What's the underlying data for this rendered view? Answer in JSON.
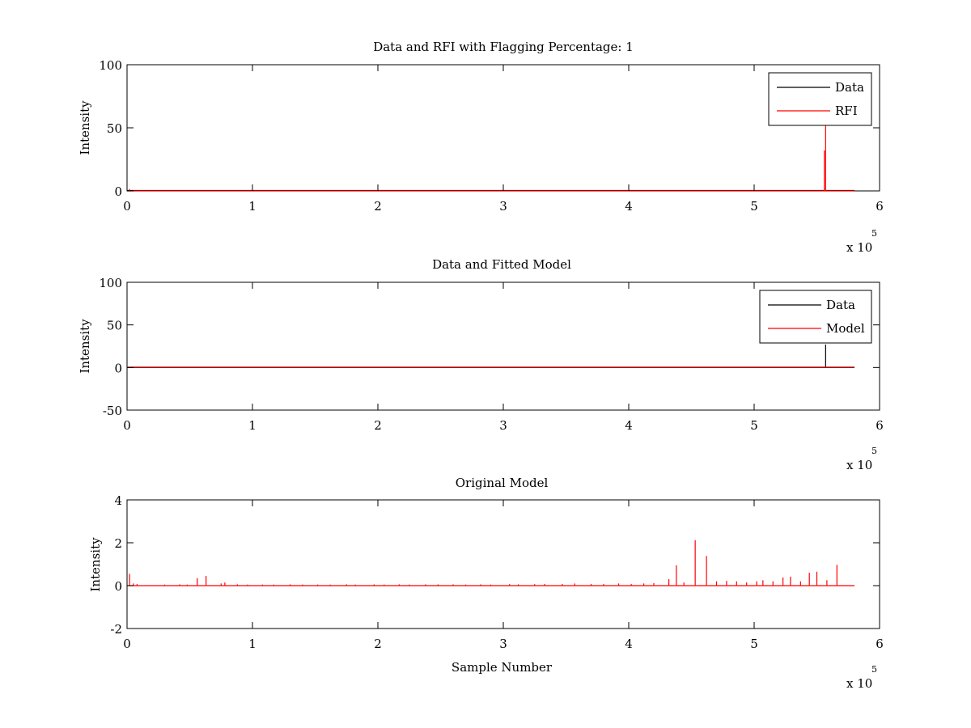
{
  "figure": {
    "background": "#ffffff"
  },
  "charts": [
    {
      "type": "line",
      "title": "Data and RFI with Flagging Percentage: 1",
      "xlabel": "",
      "ylabel": "Intensity",
      "xlim": [
        0,
        6
      ],
      "ylim": [
        0,
        100
      ],
      "xticks": [
        "0",
        "1",
        "2",
        "3",
        "4",
        "5",
        "6"
      ],
      "yticks": [
        "0",
        "50",
        "100"
      ],
      "x_multiplier": {
        "base": "x 10",
        "exp": "5"
      },
      "legend": {
        "position": "top-right",
        "entries": [
          {
            "label": "Data",
            "color": "#000000"
          },
          {
            "label": "RFI",
            "color": "#ff0000"
          }
        ]
      },
      "series": [
        {
          "name": "Data",
          "color": "#000000",
          "points": [
            [
              0,
              0.3
            ],
            [
              5.62,
              0.3
            ],
            [
              5.8,
              0.3
            ]
          ]
        },
        {
          "name": "RFI",
          "color": "#ff0000",
          "spikes": [
            [
              0.02,
              1.5
            ],
            [
              5.56,
              32
            ],
            [
              5.57,
              58
            ]
          ]
        }
      ],
      "chart_data": {
        "type": "line",
        "x_units": "x 10^5 samples",
        "series": [
          {
            "name": "Data",
            "x": [
              0,
              5.8
            ],
            "y": [
              0.3,
              0.3
            ]
          },
          {
            "name": "RFI",
            "x": [
              0.02,
              5.56,
              5.57
            ],
            "y": [
              1.5,
              32,
              58
            ]
          }
        ]
      }
    },
    {
      "type": "line",
      "title": "Data and Fitted Model",
      "xlabel": "",
      "ylabel": "Intensity",
      "xlim": [
        0,
        6
      ],
      "ylim": [
        -50,
        100
      ],
      "xticks": [
        "0",
        "1",
        "2",
        "3",
        "4",
        "5",
        "6"
      ],
      "yticks": [
        "-50",
        "0",
        "50",
        "100"
      ],
      "x_multiplier": {
        "base": "x 10",
        "exp": "5"
      },
      "legend": {
        "position": "top-right",
        "entries": [
          {
            "label": "Data",
            "color": "#000000"
          },
          {
            "label": "Model",
            "color": "#ff0000"
          }
        ]
      },
      "series": [
        {
          "name": "Data",
          "color": "#000000",
          "spikes": [
            [
              5.57,
              27
            ]
          ]
        },
        {
          "name": "Model",
          "color": "#ff0000",
          "points": [
            [
              0,
              0.5
            ],
            [
              5.8,
              0.5
            ]
          ]
        }
      ],
      "chart_data": {
        "type": "line",
        "x_units": "x 10^5 samples",
        "series": [
          {
            "name": "Data",
            "x": [
              5.57
            ],
            "y": [
              27
            ]
          },
          {
            "name": "Model",
            "x": [
              0,
              5.8
            ],
            "y": [
              0.5,
              0.5
            ]
          }
        ]
      }
    },
    {
      "type": "line",
      "title": "Original Model",
      "xlabel": "Sample Number",
      "ylabel": "Intensity",
      "xlim": [
        0,
        6
      ],
      "ylim": [
        -2,
        4
      ],
      "xticks": [
        "0",
        "1",
        "2",
        "3",
        "4",
        "5",
        "6"
      ],
      "yticks": [
        "-2",
        "0",
        "2",
        "4"
      ],
      "x_multiplier": {
        "base": "x 10",
        "exp": "5"
      },
      "legend": null,
      "series": [
        {
          "name": "",
          "color": "#ff0000",
          "spikes": [
            [
              0.02,
              0.55
            ],
            [
              0.05,
              0.1
            ],
            [
              0.08,
              0.08
            ],
            [
              0.3,
              0.05
            ],
            [
              0.42,
              0.06
            ],
            [
              0.48,
              0.05
            ],
            [
              0.56,
              0.35
            ],
            [
              0.63,
              0.45
            ],
            [
              0.75,
              0.1
            ],
            [
              0.78,
              0.15
            ],
            [
              0.88,
              0.06
            ],
            [
              0.96,
              0.05
            ],
            [
              1.08,
              0.05
            ],
            [
              1.17,
              0.05
            ],
            [
              1.3,
              0.06
            ],
            [
              1.4,
              0.05
            ],
            [
              1.52,
              0.05
            ],
            [
              1.62,
              0.05
            ],
            [
              1.75,
              0.06
            ],
            [
              1.82,
              0.05
            ],
            [
              1.97,
              0.06
            ],
            [
              2.05,
              0.05
            ],
            [
              2.17,
              0.06
            ],
            [
              2.25,
              0.05
            ],
            [
              2.38,
              0.06
            ],
            [
              2.48,
              0.06
            ],
            [
              2.6,
              0.06
            ],
            [
              2.7,
              0.05
            ],
            [
              2.82,
              0.06
            ],
            [
              2.9,
              0.05
            ],
            [
              3.05,
              0.07
            ],
            [
              3.12,
              0.06
            ],
            [
              3.25,
              0.07
            ],
            [
              3.33,
              0.08
            ],
            [
              3.47,
              0.08
            ],
            [
              3.57,
              0.1
            ],
            [
              3.7,
              0.08
            ],
            [
              3.8,
              0.08
            ],
            [
              3.92,
              0.1
            ],
            [
              4.02,
              0.08
            ],
            [
              4.12,
              0.1
            ],
            [
              4.2,
              0.12
            ],
            [
              4.32,
              0.3
            ],
            [
              4.38,
              0.95
            ],
            [
              4.44,
              0.15
            ],
            [
              4.53,
              2.12
            ],
            [
              4.62,
              1.38
            ],
            [
              4.7,
              0.2
            ],
            [
              4.78,
              0.22
            ],
            [
              4.86,
              0.2
            ],
            [
              4.94,
              0.15
            ],
            [
              5.02,
              0.2
            ],
            [
              5.07,
              0.25
            ],
            [
              5.15,
              0.2
            ],
            [
              5.23,
              0.38
            ],
            [
              5.29,
              0.42
            ],
            [
              5.37,
              0.2
            ],
            [
              5.44,
              0.6
            ],
            [
              5.5,
              0.65
            ],
            [
              5.58,
              0.25
            ],
            [
              5.66,
              0.97
            ]
          ]
        }
      ],
      "chart_data": {
        "type": "line",
        "x_units": "x 10^5 samples",
        "note_peaks": "x in units of 10^5",
        "series": [
          {
            "name": "",
            "x": [
              0.02,
              0.56,
              0.63,
              4.38,
              4.53,
              4.62,
              5.23,
              5.29,
              5.44,
              5.5,
              5.66
            ],
            "y": [
              0.55,
              0.35,
              0.45,
              0.95,
              2.12,
              1.38,
              0.38,
              0.42,
              0.6,
              0.65,
              0.97
            ]
          }
        ]
      }
    }
  ],
  "chart_data": [
    {
      "type": "line",
      "title": "Data and RFI with Flagging Percentage: 1",
      "ylabel": "Intensity",
      "xlim": [
        0,
        6
      ],
      "ylim": [
        0,
        100
      ],
      "series": [
        {
          "name": "Data",
          "x": [
            0,
            5.8
          ],
          "y": [
            0.3,
            0.3
          ]
        },
        {
          "name": "RFI",
          "x": [
            0.02,
            5.56,
            5.57
          ],
          "y": [
            1.5,
            32,
            58
          ]
        }
      ]
    },
    {
      "type": "line",
      "title": "Data and Fitted Model",
      "ylabel": "Intensity",
      "xlim": [
        0,
        6
      ],
      "ylim": [
        -50,
        100
      ],
      "series": [
        {
          "name": "Data",
          "x": [
            5.57
          ],
          "y": [
            27
          ]
        },
        {
          "name": "Model",
          "x": [
            0,
            5.8
          ],
          "y": [
            0.5,
            0.5
          ]
        }
      ]
    },
    {
      "type": "line",
      "title": "Original Model",
      "xlabel": "Sample Number",
      "ylabel": "Intensity",
      "xlim": [
        0,
        6
      ],
      "ylim": [
        -2,
        4
      ],
      "series": [
        {
          "name": "",
          "x": [
            0.02,
            0.56,
            0.63,
            4.38,
            4.53,
            4.62,
            5.23,
            5.29,
            5.44,
            5.5,
            5.66
          ],
          "y": [
            0.55,
            0.35,
            0.45,
            0.95,
            2.12,
            1.38,
            0.38,
            0.42,
            0.6,
            0.65,
            0.97
          ]
        }
      ]
    }
  ]
}
